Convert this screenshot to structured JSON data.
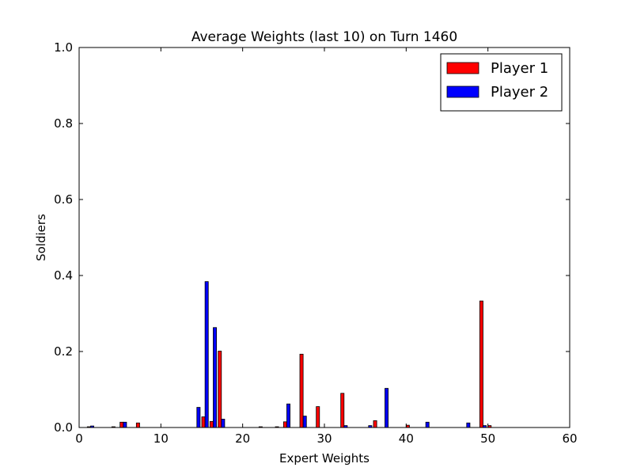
{
  "chart_data": {
    "type": "bar",
    "title": "Average Weights (last 10) on Turn 1460",
    "xlabel": "Expert Weights",
    "ylabel": "Soldiers",
    "xlim": [
      0,
      60
    ],
    "ylim": [
      0,
      1.0
    ],
    "xticks": [
      0,
      10,
      20,
      30,
      40,
      50,
      60
    ],
    "xtick_labels": [
      "0",
      "10",
      "20",
      "30",
      "40",
      "50",
      "60"
    ],
    "yticks": [
      0.0,
      0.2,
      0.4,
      0.6,
      0.8,
      1.0
    ],
    "ytick_labels": [
      "0.0",
      "0.2",
      "0.4",
      "0.6",
      "0.8",
      "1.0"
    ],
    "grid": false,
    "legend_position": "top-right",
    "series": [
      {
        "name": "Player 1",
        "color": "#ff0000",
        "points": [
          {
            "x": 1,
            "y": 0.002
          },
          {
            "x": 4,
            "y": 0.002
          },
          {
            "x": 5,
            "y": 0.014
          },
          {
            "x": 7,
            "y": 0.012
          },
          {
            "x": 15,
            "y": 0.028
          },
          {
            "x": 16,
            "y": 0.016
          },
          {
            "x": 17,
            "y": 0.201
          },
          {
            "x": 22,
            "y": 0.002
          },
          {
            "x": 24,
            "y": 0.002
          },
          {
            "x": 25,
            "y": 0.015
          },
          {
            "x": 27,
            "y": 0.193
          },
          {
            "x": 29,
            "y": 0.055
          },
          {
            "x": 32,
            "y": 0.09
          },
          {
            "x": 36,
            "y": 0.018
          },
          {
            "x": 40,
            "y": 0.006
          },
          {
            "x": 49,
            "y": 0.333
          },
          {
            "x": 50,
            "y": 0.005
          }
        ]
      },
      {
        "name": "Player 2",
        "color": "#0000ff",
        "points": [
          {
            "x": 1,
            "y": 0.004
          },
          {
            "x": 5,
            "y": 0.014
          },
          {
            "x": 14,
            "y": 0.053
          },
          {
            "x": 15,
            "y": 0.384
          },
          {
            "x": 16,
            "y": 0.263
          },
          {
            "x": 17,
            "y": 0.022
          },
          {
            "x": 25,
            "y": 0.062
          },
          {
            "x": 27,
            "y": 0.03
          },
          {
            "x": 32,
            "y": 0.005
          },
          {
            "x": 35,
            "y": 0.005
          },
          {
            "x": 37,
            "y": 0.103
          },
          {
            "x": 42,
            "y": 0.014
          },
          {
            "x": 47,
            "y": 0.012
          },
          {
            "x": 49,
            "y": 0.005
          }
        ]
      }
    ]
  }
}
